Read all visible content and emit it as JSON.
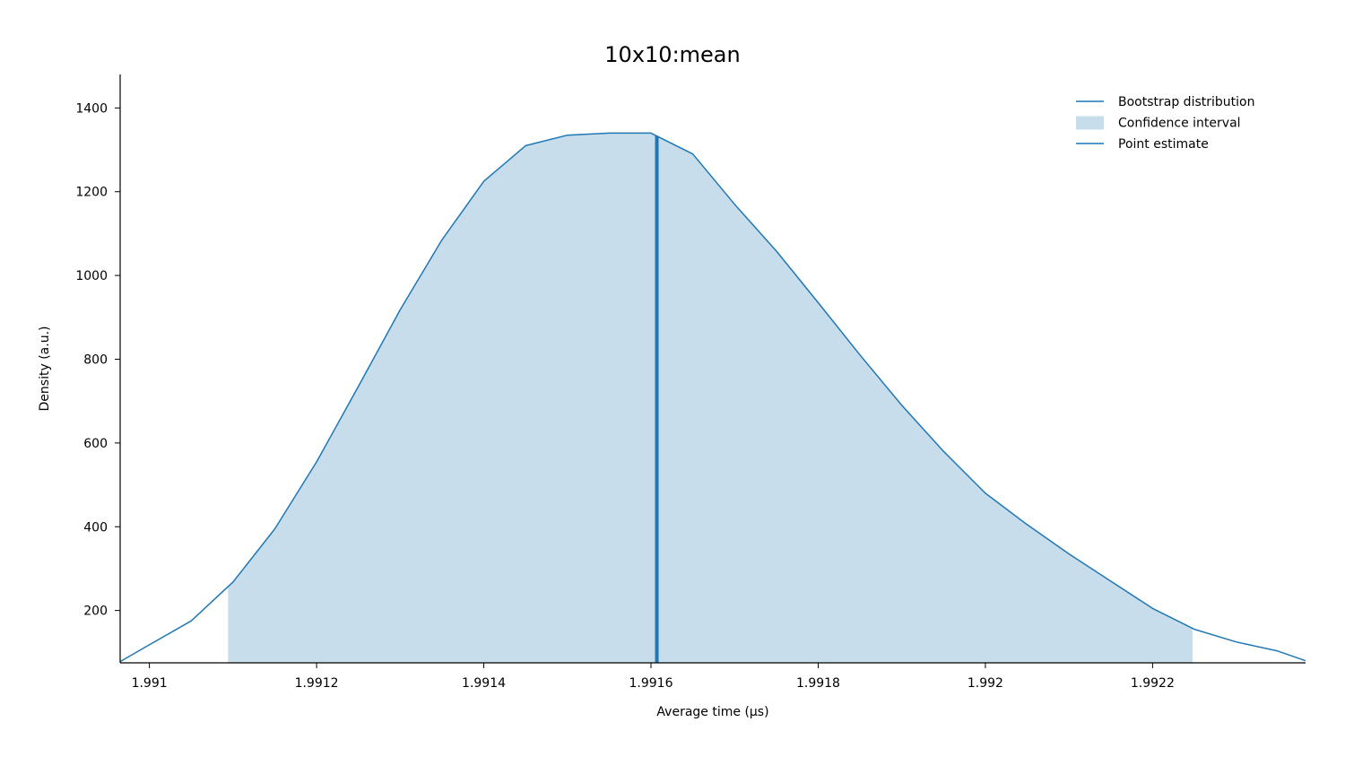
{
  "chart_data": {
    "type": "area",
    "title": "10x10:mean",
    "xlabel": "Average time (µs)",
    "ylabel": "Density (a.u.)",
    "xlim": [
      1.990965,
      1.992383
    ],
    "ylim": [
      75,
      1480
    ],
    "x_ticks": [
      {
        "value": 1.991,
        "label": "1.991"
      },
      {
        "value": 1.9912,
        "label": "1.9912"
      },
      {
        "value": 1.9914,
        "label": "1.9914"
      },
      {
        "value": 1.9916,
        "label": "1.9916"
      },
      {
        "value": 1.9918,
        "label": "1.9918"
      },
      {
        "value": 1.992,
        "label": "1.992"
      },
      {
        "value": 1.9922,
        "label": "1.9922"
      }
    ],
    "y_ticks": [
      {
        "value": 200,
        "label": "200"
      },
      {
        "value": 400,
        "label": "400"
      },
      {
        "value": 600,
        "label": "600"
      },
      {
        "value": 800,
        "label": "800"
      },
      {
        "value": 1000,
        "label": "1000"
      },
      {
        "value": 1200,
        "label": "1200"
      },
      {
        "value": 1400,
        "label": "1400"
      }
    ],
    "series": [
      {
        "name": "Bootstrap distribution",
        "color": "#1f77b4",
        "x": [
          1.990965,
          1.991,
          1.99105,
          1.9911,
          1.99115,
          1.9912,
          1.99125,
          1.9913,
          1.99135,
          1.9914,
          1.99145,
          1.9915,
          1.99155,
          1.9916,
          1.99165,
          1.9917,
          1.99175,
          1.9918,
          1.99185,
          1.9919,
          1.99195,
          1.992,
          1.99205,
          1.9921,
          1.99215,
          1.9922,
          1.99225,
          1.9923,
          1.99235,
          1.992383
        ],
        "y": [
          78,
          118,
          175,
          268,
          395,
          555,
          735,
          918,
          1085,
          1225,
          1310,
          1335,
          1340,
          1340,
          1290,
          1170,
          1058,
          935,
          810,
          690,
          580,
          480,
          405,
          335,
          270,
          205,
          155,
          125,
          103,
          80
        ]
      },
      {
        "name": "Confidence interval",
        "color": "#1f77b4",
        "fill_opacity": 0.25,
        "range": [
          1.991094,
          1.992248
        ]
      },
      {
        "name": "Point estimate",
        "color": "#1f77b4",
        "value": 1.991607
      }
    ],
    "legend": {
      "placement": "top-right",
      "entries": [
        "Bootstrap distribution",
        "Confidence interval",
        "Point estimate"
      ]
    },
    "grid": false
  }
}
